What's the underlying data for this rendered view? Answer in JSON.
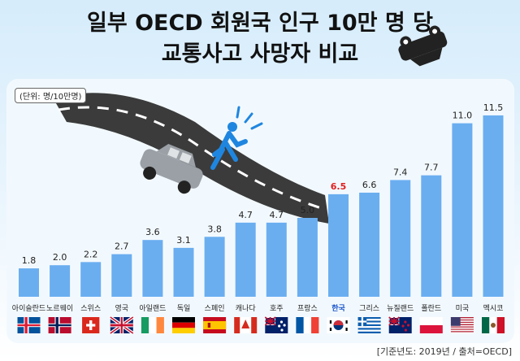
{
  "title_line1": "일부 OECD 회원국 인구 10만 명 당",
  "title_line2": "교통사고 사망자 비교",
  "unit_label": "(단위: 명/10만명)",
  "source": "[기준년도: 2019년 / 출처=OECD]",
  "colors": {
    "bar": "#6aaef0",
    "value_text": "#222222",
    "highlight_text": "#e02020",
    "highlight_label": "#1a55c8"
  },
  "chart_data": {
    "type": "bar",
    "title": "일부 OECD 회원국 인구 10만 명 당 교통사고 사망자 비교",
    "ylabel": "(단위: 명/10만명)",
    "categories": [
      "아이슬란드",
      "노르웨이",
      "스위스",
      "영국",
      "아일랜드",
      "독일",
      "스페인",
      "캐나다",
      "호주",
      "프랑스",
      "한국",
      "그리스",
      "뉴질랜드",
      "폴란드",
      "미국",
      "멕시코"
    ],
    "values": [
      1.8,
      2.0,
      2.2,
      2.7,
      3.6,
      3.1,
      3.8,
      4.7,
      4.7,
      5.0,
      6.5,
      6.6,
      7.4,
      7.7,
      11.0,
      11.5
    ],
    "labels": [
      "1.8",
      "2.0",
      "2.2",
      "2.7",
      "3.6",
      "3.1",
      "3.8",
      "4.7",
      "4.7",
      "5.0",
      "6.5",
      "6.6",
      "7.4",
      "7.7",
      "11.0",
      "11.5"
    ],
    "highlight": "한국",
    "flags": [
      "iceland-flag",
      "norway-flag",
      "switzerland-flag",
      "uk-flag",
      "ireland-flag",
      "germany-flag",
      "spain-flag",
      "canada-flag",
      "australia-flag",
      "france-flag",
      "korea-flag",
      "greece-flag",
      "newzealand-flag",
      "poland-flag",
      "usa-flag",
      "mexico-flag"
    ],
    "ylim": [
      0,
      12
    ],
    "grid": false
  }
}
